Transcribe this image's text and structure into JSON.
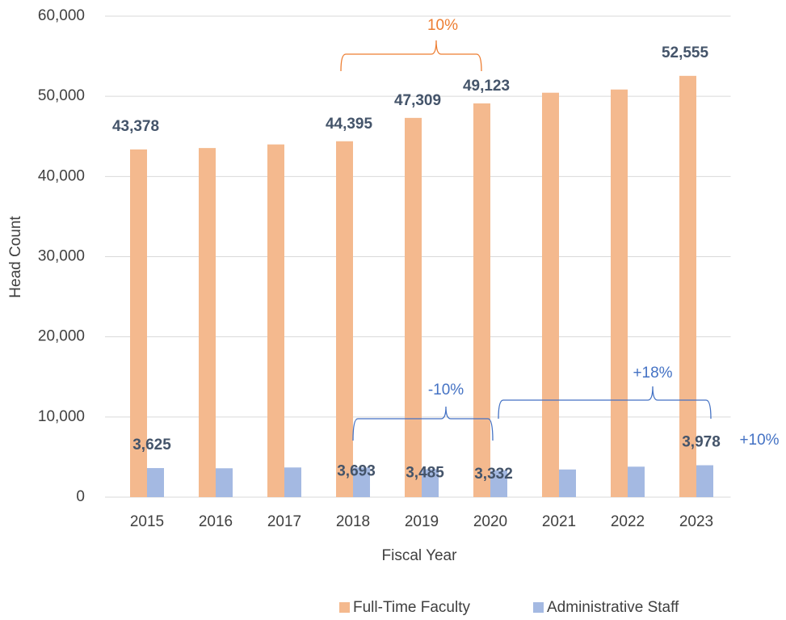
{
  "chart_data": {
    "type": "bar",
    "categories": [
      "2015",
      "2016",
      "2017",
      "2018",
      "2019",
      "2020",
      "2021",
      "2022",
      "2023"
    ],
    "series": [
      {
        "name": "Full-Time Faculty",
        "color": "#f4b98e",
        "values": [
          43378,
          43550,
          44000,
          44395,
          47309,
          49123,
          50450,
          50850,
          52555
        ],
        "value_labels": [
          "43,378",
          null,
          null,
          "44,395",
          "47,309",
          "49,123",
          null,
          null,
          "52,555"
        ]
      },
      {
        "name": "Administrative Staff",
        "color": "#a4b9e2",
        "values": [
          3625,
          3600,
          3700,
          3693,
          3485,
          3332,
          3450,
          3800,
          3978
        ],
        "value_labels": [
          "3,625",
          null,
          null,
          "3,693",
          "3,485",
          "3,332",
          null,
          null,
          "3,978"
        ]
      }
    ],
    "ylim": [
      0,
      60000
    ],
    "yticks": [
      0,
      {
        "value": 10000,
        "label": "10,000"
      },
      {
        "value": 20000,
        "label": "20,000"
      },
      {
        "value": 30000,
        "label": "30,000"
      },
      {
        "value": 40000,
        "label": "40,000"
      },
      {
        "value": 50000,
        "label": "50,000"
      },
      {
        "value": 60000,
        "label": "60,000"
      }
    ],
    "grid": true,
    "y_label": "Head Count",
    "x_label": "Fiscal Year",
    "legend": "bottom",
    "annotations": [
      "10%",
      "-10%",
      "+18%",
      "+10%"
    ]
  }
}
